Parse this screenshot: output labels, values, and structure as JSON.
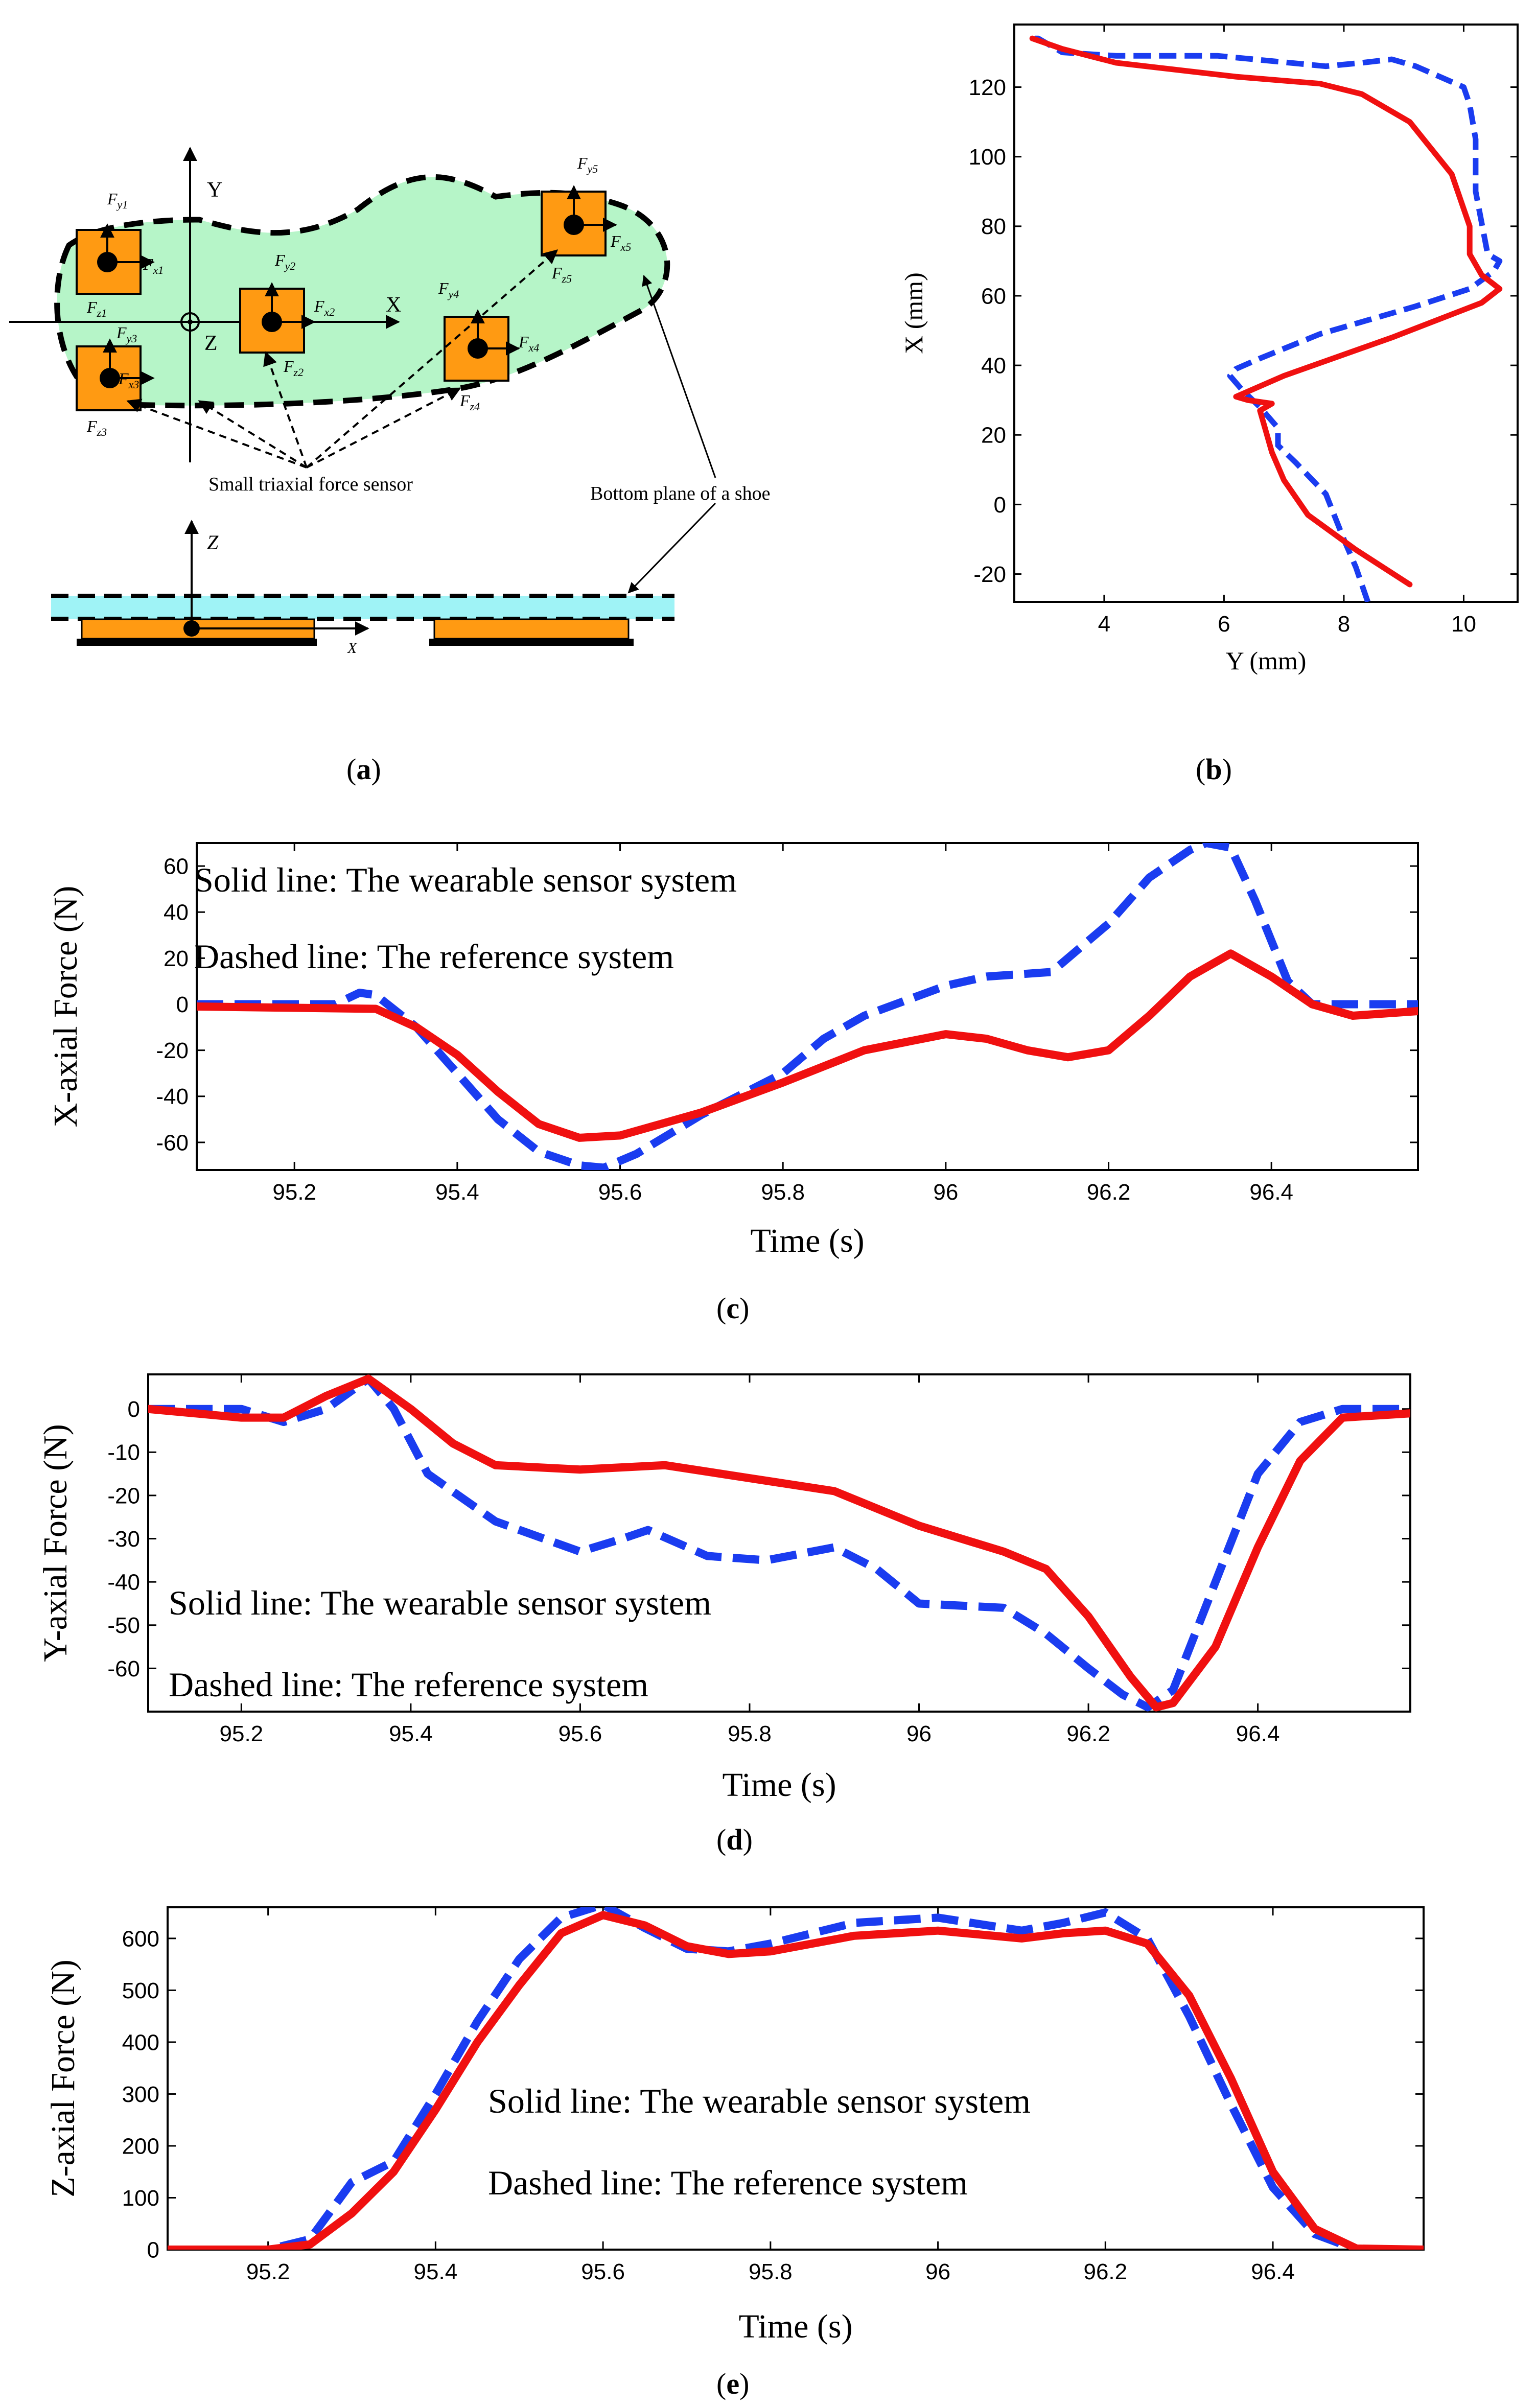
{
  "colors": {
    "reference": "#1a3cf0",
    "wearable": "#f01010",
    "sole": "#b6f5c8",
    "sensor": "#ff9a12",
    "shoe_plane": "#9ff3f6",
    "axis": "#000000"
  },
  "panel_labels": {
    "a": "a",
    "b": "b",
    "c": "c",
    "d": "d",
    "e": "e"
  },
  "diagram_a": {
    "axis_y": "Y",
    "axis_x": "X",
    "axis_z": "Z",
    "axis_z2": "Z",
    "axis_x2": "X",
    "caption_sensor": "Small triaxial force sensor",
    "caption_shoe": "Bottom plane of a shoe",
    "sensors": [
      {
        "fy": "F",
        "fy_sub": "y1",
        "fx": "F",
        "fx_sub": "x1",
        "fz": "F",
        "fz_sub": "z1"
      },
      {
        "fy": "F",
        "fy_sub": "y2",
        "fx": "F",
        "fx_sub": "x2",
        "fz": "F",
        "fz_sub": "z2"
      },
      {
        "fy": "F",
        "fy_sub": "y3",
        "fx": "F",
        "fx_sub": "x3",
        "fz": "F",
        "fz_sub": "z3"
      },
      {
        "fy": "F",
        "fy_sub": "y4",
        "fx": "F",
        "fx_sub": "x4",
        "fz": "F",
        "fz_sub": "z4"
      },
      {
        "fy": "F",
        "fy_sub": "y5",
        "fx": "F",
        "fx_sub": "x5",
        "fz": "F",
        "fz_sub": "z5"
      }
    ]
  },
  "chart_data": [
    {
      "id": "b",
      "type": "line",
      "xlabel": "Y (mm)",
      "ylabel": "X (mm)",
      "xlim": [
        2.5,
        10.9
      ],
      "ylim": [
        -28,
        138
      ],
      "xticks": [
        4,
        6,
        8,
        10
      ],
      "yticks": [
        -20,
        0,
        20,
        40,
        60,
        80,
        100,
        120
      ],
      "series": [
        {
          "name": "Dashed line: The reference system",
          "style": "dashed",
          "color": "#1a3cf0",
          "x": [
            8.4,
            8.2,
            8.0,
            7.7,
            7.2,
            6.9,
            6.9,
            6.6,
            6.3,
            6.1,
            6.2,
            6.6,
            7.6,
            9.2,
            10.1,
            10.5,
            10.6,
            10.4,
            10.2,
            10.2,
            10.1,
            10.0,
            9.2,
            8.8,
            8.3,
            7.7,
            5.9,
            4.2,
            3.3,
            2.9,
            2.8
          ],
          "y": [
            -28,
            -18,
            -10,
            3,
            12,
            17,
            22,
            28,
            33,
            37,
            39,
            42,
            49,
            57,
            62,
            67,
            70,
            72,
            90,
            105,
            115,
            120,
            126,
            128,
            127,
            126,
            129,
            129,
            130,
            134,
            134
          ]
        },
        {
          "name": "Solid line: The wearable sensor system",
          "style": "solid",
          "color": "#f01010",
          "x": [
            9.1,
            8.2,
            7.4,
            7.0,
            6.8,
            6.7,
            6.6,
            6.8,
            6.4,
            6.2,
            7.0,
            8.8,
            10.3,
            10.6,
            10.3,
            10.1,
            10.1,
            9.8,
            9.1,
            8.3,
            7.6,
            6.2,
            4.2,
            3.3,
            2.8
          ],
          "y": [
            -23,
            -13,
            -3,
            7,
            15,
            21,
            27,
            29,
            30,
            31,
            37,
            48,
            58,
            62,
            66,
            72,
            80,
            95,
            110,
            118,
            121,
            123,
            127,
            131,
            134
          ]
        }
      ]
    },
    {
      "id": "c",
      "type": "line",
      "xlabel": "Time (s)",
      "ylabel": "X-axial Force (N)",
      "xlim": [
        95.08,
        96.58
      ],
      "ylim": [
        -72,
        70
      ],
      "xticks": [
        95.2,
        95.4,
        95.6,
        95.8,
        96,
        96.2,
        96.4
      ],
      "xtick_labels": [
        "95.2",
        "95.4",
        "95.6",
        "95.8",
        "96",
        "96.2",
        "96.4"
      ],
      "yticks": [
        -60,
        -40,
        -20,
        0,
        20,
        40,
        60
      ],
      "annotations": [
        "Solid line: The wearable sensor system",
        "Dashed line: The reference system"
      ],
      "series": [
        {
          "name": "Dashed line: The reference system",
          "style": "dashed",
          "color": "#1a3cf0",
          "x": [
            95.08,
            95.25,
            95.28,
            95.3,
            95.35,
            95.4,
            95.45,
            95.5,
            95.55,
            95.58,
            95.62,
            95.7,
            95.8,
            95.85,
            95.9,
            96.0,
            96.05,
            96.13,
            96.2,
            96.25,
            96.3,
            96.32,
            96.35,
            96.38,
            96.42,
            96.45,
            96.58
          ],
          "y": [
            0,
            0,
            5,
            4,
            -10,
            -30,
            -50,
            -64,
            -70,
            -71,
            -65,
            -48,
            -30,
            -15,
            -5,
            8,
            12,
            14,
            35,
            55,
            67,
            70,
            68,
            45,
            10,
            0,
            0
          ]
        },
        {
          "name": "Solid line: The wearable sensor system",
          "style": "solid",
          "color": "#f01010",
          "x": [
            95.08,
            95.3,
            95.35,
            95.4,
            95.45,
            95.5,
            95.55,
            95.6,
            95.65,
            95.7,
            95.8,
            95.9,
            96.0,
            96.05,
            96.1,
            96.15,
            96.2,
            96.25,
            96.3,
            96.35,
            96.4,
            96.45,
            96.5,
            96.58
          ],
          "y": [
            -1,
            -2,
            -10,
            -22,
            -38,
            -52,
            -58,
            -57,
            -52,
            -47,
            -34,
            -20,
            -13,
            -15,
            -20,
            -23,
            -20,
            -5,
            12,
            22,
            12,
            0,
            -5,
            -3
          ]
        }
      ]
    },
    {
      "id": "d",
      "type": "line",
      "xlabel": "Time (s)",
      "ylabel": "Y-axial Force (N)",
      "xlim": [
        95.09,
        96.58
      ],
      "ylim": [
        -70,
        8
      ],
      "xticks": [
        95.2,
        95.4,
        95.6,
        95.8,
        96,
        96.2,
        96.4
      ],
      "xtick_labels": [
        "95.2",
        "95.4",
        "95.6",
        "95.8",
        "96",
        "96.2",
        "96.4"
      ],
      "yticks": [
        -60,
        -50,
        -40,
        -30,
        -20,
        -10,
        0
      ],
      "annotations": [
        "Solid line: The wearable sensor system",
        "Dashed line: The reference system"
      ],
      "series": [
        {
          "name": "Dashed line: The reference system",
          "style": "dashed",
          "color": "#1a3cf0",
          "x": [
            95.09,
            95.2,
            95.25,
            95.3,
            95.35,
            95.38,
            95.42,
            95.5,
            95.6,
            95.65,
            95.68,
            95.75,
            95.82,
            95.9,
            95.95,
            96.0,
            96.1,
            96.15,
            96.2,
            96.24,
            96.27,
            96.3,
            96.35,
            96.4,
            96.45,
            96.5,
            96.58
          ],
          "y": [
            0,
            0,
            -3,
            0,
            7,
            0,
            -15,
            -26,
            -33,
            -30,
            -28,
            -34,
            -35,
            -32,
            -37,
            -45,
            -46,
            -52,
            -60,
            -66,
            -69,
            -65,
            -40,
            -15,
            -3,
            0,
            0
          ]
        },
        {
          "name": "Solid line: The wearable sensor system",
          "style": "solid",
          "color": "#f01010",
          "x": [
            95.09,
            95.2,
            95.25,
            95.3,
            95.35,
            95.4,
            95.45,
            95.5,
            95.6,
            95.7,
            95.8,
            95.9,
            96.0,
            96.1,
            96.15,
            96.2,
            96.25,
            96.28,
            96.3,
            96.35,
            96.4,
            96.45,
            96.5,
            96.58
          ],
          "y": [
            0,
            -2,
            -2,
            3,
            7,
            0,
            -8,
            -13,
            -14,
            -13,
            -16,
            -19,
            -27,
            -33,
            -37,
            -48,
            -62,
            -69,
            -68,
            -55,
            -32,
            -12,
            -2,
            -1
          ]
        }
      ]
    },
    {
      "id": "e",
      "type": "line",
      "xlabel": "Time (s)",
      "ylabel": "Z-axial Force (N)",
      "xlim": [
        95.08,
        96.58
      ],
      "ylim": [
        0,
        660
      ],
      "xticks": [
        95.2,
        95.4,
        95.6,
        95.8,
        96,
        96.2,
        96.4
      ],
      "xtick_labels": [
        "95.2",
        "95.4",
        "95.6",
        "95.8",
        "96",
        "96.2",
        "96.4"
      ],
      "yticks": [
        0,
        100,
        200,
        300,
        400,
        500,
        600
      ],
      "annotations": [
        "Solid line: The wearable sensor system",
        "Dashed line: The reference system"
      ],
      "series": [
        {
          "name": "Dashed line: The reference system",
          "style": "dashed",
          "color": "#1a3cf0",
          "x": [
            95.08,
            95.2,
            95.25,
            95.3,
            95.35,
            95.4,
            95.45,
            95.5,
            95.55,
            95.6,
            95.65,
            95.7,
            95.75,
            95.8,
            95.9,
            96.0,
            96.1,
            96.15,
            96.2,
            96.25,
            96.3,
            96.35,
            96.4,
            96.45,
            96.5,
            96.58
          ],
          "y": [
            0,
            0,
            20,
            130,
            170,
            300,
            440,
            560,
            640,
            665,
            620,
            580,
            575,
            590,
            630,
            640,
            615,
            630,
            650,
            600,
            450,
            280,
            120,
            30,
            0,
            0
          ]
        },
        {
          "name": "Solid line: The wearable sensor system",
          "style": "solid",
          "color": "#f01010",
          "x": [
            95.08,
            95.2,
            95.25,
            95.3,
            95.35,
            95.4,
            95.45,
            95.5,
            95.55,
            95.6,
            95.65,
            95.7,
            95.75,
            95.8,
            95.9,
            96.0,
            96.1,
            96.15,
            96.2,
            96.25,
            96.3,
            96.35,
            96.4,
            96.45,
            96.5,
            96.58
          ],
          "y": [
            0,
            0,
            10,
            70,
            150,
            270,
            400,
            510,
            610,
            645,
            625,
            585,
            570,
            575,
            605,
            615,
            600,
            610,
            615,
            590,
            490,
            330,
            150,
            40,
            2,
            0
          ]
        }
      ]
    }
  ]
}
